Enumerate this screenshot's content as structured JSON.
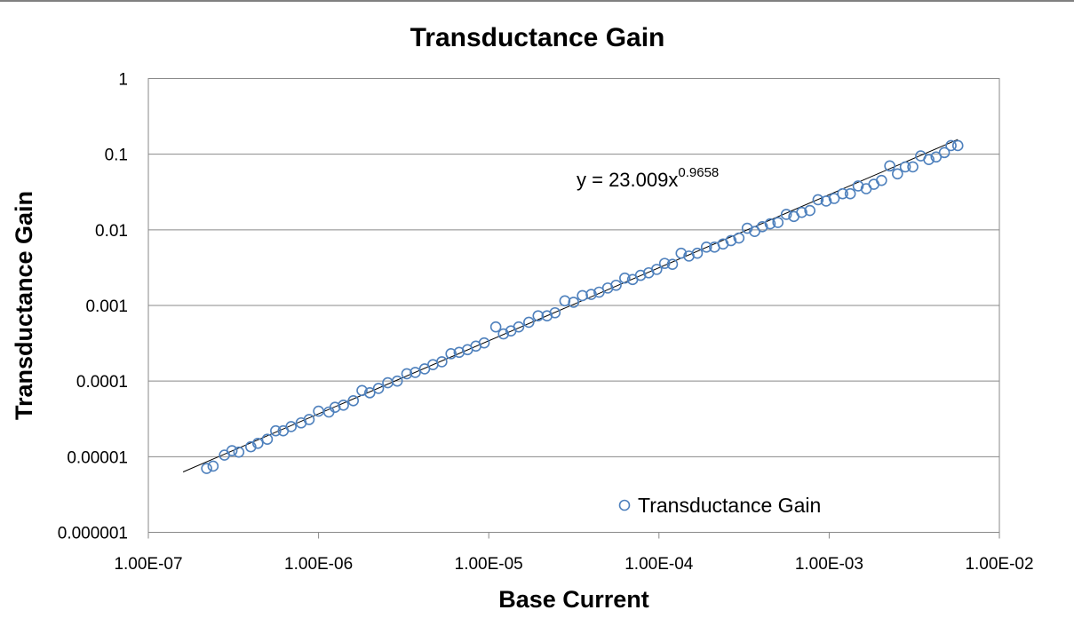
{
  "chart_data": {
    "type": "scatter",
    "title": "Transductance Gain",
    "xlabel": "Base Current",
    "ylabel": "Transductance Gain",
    "x_scale": "log",
    "y_scale": "log",
    "xlim": [
      1e-07,
      0.01
    ],
    "ylim": [
      1e-06,
      1
    ],
    "x_tick_labels": [
      "1.00E-07",
      "1.00E-06",
      "1.00E-05",
      "1.00E-04",
      "1.00E-03",
      "1.00E-02"
    ],
    "y_tick_labels": [
      "0.000001",
      "0.00001",
      "0.0001",
      "0.001",
      "0.01",
      "0.1",
      "1"
    ],
    "grid": "horizontal",
    "legend_position": "bottom-right",
    "series": [
      {
        "name": "Transductance Gain",
        "marker": "open-circle",
        "color": "#4f81bd",
        "x": [
          2.2e-07,
          2.4e-07,
          2.8e-07,
          3.1e-07,
          3.4e-07,
          4e-07,
          4.4e-07,
          5e-07,
          5.6e-07,
          6.2e-07,
          6.9e-07,
          7.9e-07,
          8.8e-07,
          1e-06,
          1.15e-06,
          1.25e-06,
          1.4e-06,
          1.6e-06,
          1.8e-06,
          2e-06,
          2.25e-06,
          2.55e-06,
          2.9e-06,
          3.3e-06,
          3.7e-06,
          4.2e-06,
          4.7e-06,
          5.3e-06,
          6e-06,
          6.7e-06,
          7.5e-06,
          8.4e-06,
          9.4e-06,
          1.1e-05,
          1.22e-05,
          1.35e-05,
          1.5e-05,
          1.72e-05,
          1.95e-05,
          2.2e-05,
          2.45e-05,
          2.8e-05,
          3.15e-05,
          3.55e-05,
          4e-05,
          4.45e-05,
          5e-05,
          5.6e-05,
          6.3e-05,
          7e-05,
          7.8e-05,
          8.7e-05,
          9.7e-05,
          0.000108,
          0.00012,
          0.000135,
          0.00015,
          0.000168,
          0.00019,
          0.000212,
          0.000238,
          0.000265,
          0.000295,
          0.00033,
          0.000365,
          0.000405,
          0.00045,
          0.0005,
          0.00056,
          0.00062,
          0.00069,
          0.00077,
          0.00086,
          0.00096,
          0.00107,
          0.0012,
          0.00133,
          0.00148,
          0.00165,
          0.00183,
          0.00203,
          0.00227,
          0.00252,
          0.0028,
          0.0031,
          0.00345,
          0.00385,
          0.00425,
          0.00475,
          0.0052,
          0.0057
        ],
        "y": [
          7e-06,
          7.5e-06,
          1.05e-05,
          1.2e-05,
          1.15e-05,
          1.35e-05,
          1.5e-05,
          1.7e-05,
          2.2e-05,
          2.2e-05,
          2.5e-05,
          2.8e-05,
          3.1e-05,
          4e-05,
          3.9e-05,
          4.5e-05,
          4.8e-05,
          5.5e-05,
          7.5e-05,
          7e-05,
          8e-05,
          9.5e-05,
          0.0001,
          0.000125,
          0.00013,
          0.000145,
          0.000165,
          0.00018,
          0.00023,
          0.00024,
          0.00026,
          0.00029,
          0.00032,
          0.00052,
          0.00042,
          0.00046,
          0.00052,
          0.0006,
          0.00073,
          0.00073,
          0.0008,
          0.00115,
          0.0011,
          0.00135,
          0.0014,
          0.0015,
          0.0017,
          0.00185,
          0.0023,
          0.0022,
          0.0025,
          0.0027,
          0.003,
          0.0036,
          0.0035,
          0.0049,
          0.0045,
          0.0049,
          0.0059,
          0.0059,
          0.0065,
          0.0072,
          0.0078,
          0.0105,
          0.0095,
          0.011,
          0.012,
          0.0125,
          0.016,
          0.015,
          0.017,
          0.018,
          0.025,
          0.024,
          0.026,
          0.03,
          0.03,
          0.038,
          0.035,
          0.04,
          0.045,
          0.07,
          0.055,
          0.068,
          0.068,
          0.095,
          0.085,
          0.092,
          0.105,
          0.13,
          0.13
        ]
      }
    ],
    "trendline": {
      "type": "power",
      "coefficient": 23.009,
      "exponent": 0.9658,
      "x_range": [
        1.6e-07,
        0.0057
      ],
      "color": "#000000",
      "label_prefix": "y = 23.009x",
      "label_exponent": "0.9658"
    }
  }
}
